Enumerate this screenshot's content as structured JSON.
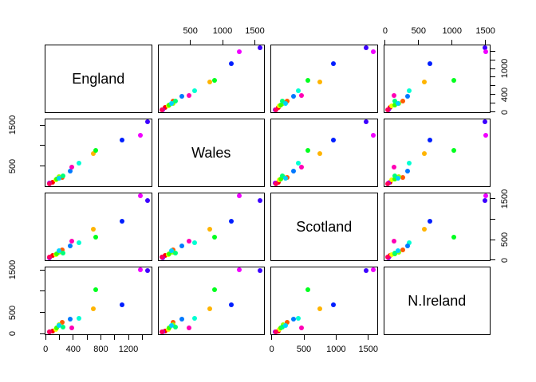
{
  "figure_title": "",
  "chart_data": {
    "type": "scatter",
    "subtype": "scatterplot-matrix",
    "grid": {
      "rows": 4,
      "cols": 4
    },
    "variables": [
      "England",
      "Wales",
      "Scotland",
      "N.Ireland"
    ],
    "diagonal_labels": [
      "England",
      "Wales",
      "Scotland",
      "N.Ireland"
    ],
    "axis_ranges": {
      "England": [
        -2.72,
        1528.72
      ],
      "Wales": [
        3.28,
        1642.72
      ],
      "Scotland": [
        -7.76,
        1632.76
      ],
      "N.Ireland": [
        -17.6,
        1564.6
      ]
    },
    "points": [
      {
        "color": "#FF0000",
        "values": [
          105,
          103,
          103,
          66
        ]
      },
      {
        "color": "#FF5A00",
        "values": [
          245,
          227,
          242,
          267
        ]
      },
      {
        "color": "#FFB400",
        "values": [
          685,
          803,
          750,
          586
        ]
      },
      {
        "color": "#F0FF00",
        "values": [
          147,
          160,
          122,
          93
        ]
      },
      {
        "color": "#96FF00",
        "values": [
          193,
          235,
          184,
          209
        ]
      },
      {
        "color": "#3CFF00",
        "values": [
          156,
          175,
          147,
          139
        ]
      },
      {
        "color": "#00FF1E",
        "values": [
          720,
          874,
          566,
          1033
        ]
      },
      {
        "color": "#00FF78",
        "values": [
          253,
          265,
          171,
          143
        ]
      },
      {
        "color": "#00FFD2",
        "values": [
          488,
          570,
          418,
          355
        ]
      },
      {
        "color": "#00D2FF",
        "values": [
          198,
          203,
          220,
          187
        ]
      },
      {
        "color": "#0078FF",
        "values": [
          360,
          365,
          337,
          334
        ]
      },
      {
        "color": "#001EFF",
        "values": [
          1102,
          1137,
          957,
          674
        ]
      },
      {
        "color": "#3C00FF",
        "values": [
          1472,
          1582,
          1462,
          1494
        ]
      },
      {
        "color": "#9600FF",
        "values": [
          57,
          73,
          53,
          47
        ]
      },
      {
        "color": "#F000FF",
        "values": [
          1374,
          1256,
          1572,
          1506
        ]
      },
      {
        "color": "#FF00B4",
        "values": [
          375,
          475,
          458,
          135
        ]
      },
      {
        "color": "#FF005A",
        "values": [
          54,
          64,
          62,
          41
        ]
      }
    ],
    "axes": [
      {
        "side": "top",
        "col": 1,
        "variable": "Wales",
        "ticks": [
          [
            500,
            "500"
          ],
          [
            1000,
            "1000"
          ],
          [
            1500,
            "1500"
          ]
        ]
      },
      {
        "side": "top",
        "col": 3,
        "variable": "N.Ireland",
        "ticks": [
          [
            0,
            "0"
          ],
          [
            500,
            "500"
          ],
          [
            1000,
            "1000"
          ],
          [
            1500,
            "1500"
          ]
        ]
      },
      {
        "side": "bottom",
        "col": 0,
        "variable": "England",
        "ticks": [
          [
            0,
            "0"
          ],
          [
            200,
            ""
          ],
          [
            400,
            "400"
          ],
          [
            600,
            ""
          ],
          [
            800,
            "800"
          ],
          [
            1000,
            ""
          ],
          [
            1200,
            "1200"
          ],
          [
            1400,
            ""
          ]
        ]
      },
      {
        "side": "bottom",
        "col": 2,
        "variable": "Scotland",
        "ticks": [
          [
            0,
            "0"
          ],
          [
            500,
            "500"
          ],
          [
            1000,
            "1000"
          ],
          [
            1500,
            "1500"
          ]
        ]
      },
      {
        "side": "left",
        "row": 1,
        "variable": "Wales",
        "ticks": [
          [
            500,
            "500"
          ],
          [
            1000,
            ""
          ],
          [
            1500,
            "1500"
          ]
        ]
      },
      {
        "side": "left",
        "row": 3,
        "variable": "N.Ireland",
        "ticks": [
          [
            0,
            "0"
          ],
          [
            500,
            "500"
          ],
          [
            1000,
            ""
          ],
          [
            1500,
            "1500"
          ]
        ]
      },
      {
        "side": "right",
        "row": 0,
        "variable": "England",
        "ticks": [
          [
            0,
            "0"
          ],
          [
            200,
            ""
          ],
          [
            400,
            "400"
          ],
          [
            600,
            ""
          ],
          [
            800,
            ""
          ],
          [
            1000,
            "1000"
          ],
          [
            1200,
            ""
          ],
          [
            1400,
            ""
          ]
        ]
      },
      {
        "side": "right",
        "row": 2,
        "variable": "Scotland",
        "ticks": [
          [
            0,
            "0"
          ],
          [
            500,
            "500"
          ],
          [
            1000,
            ""
          ],
          [
            1500,
            "1500"
          ]
        ]
      }
    ],
    "colors": {
      "point_palette": "rainbow-17",
      "frame": "#000000",
      "background": "#FFFFFF"
    }
  }
}
